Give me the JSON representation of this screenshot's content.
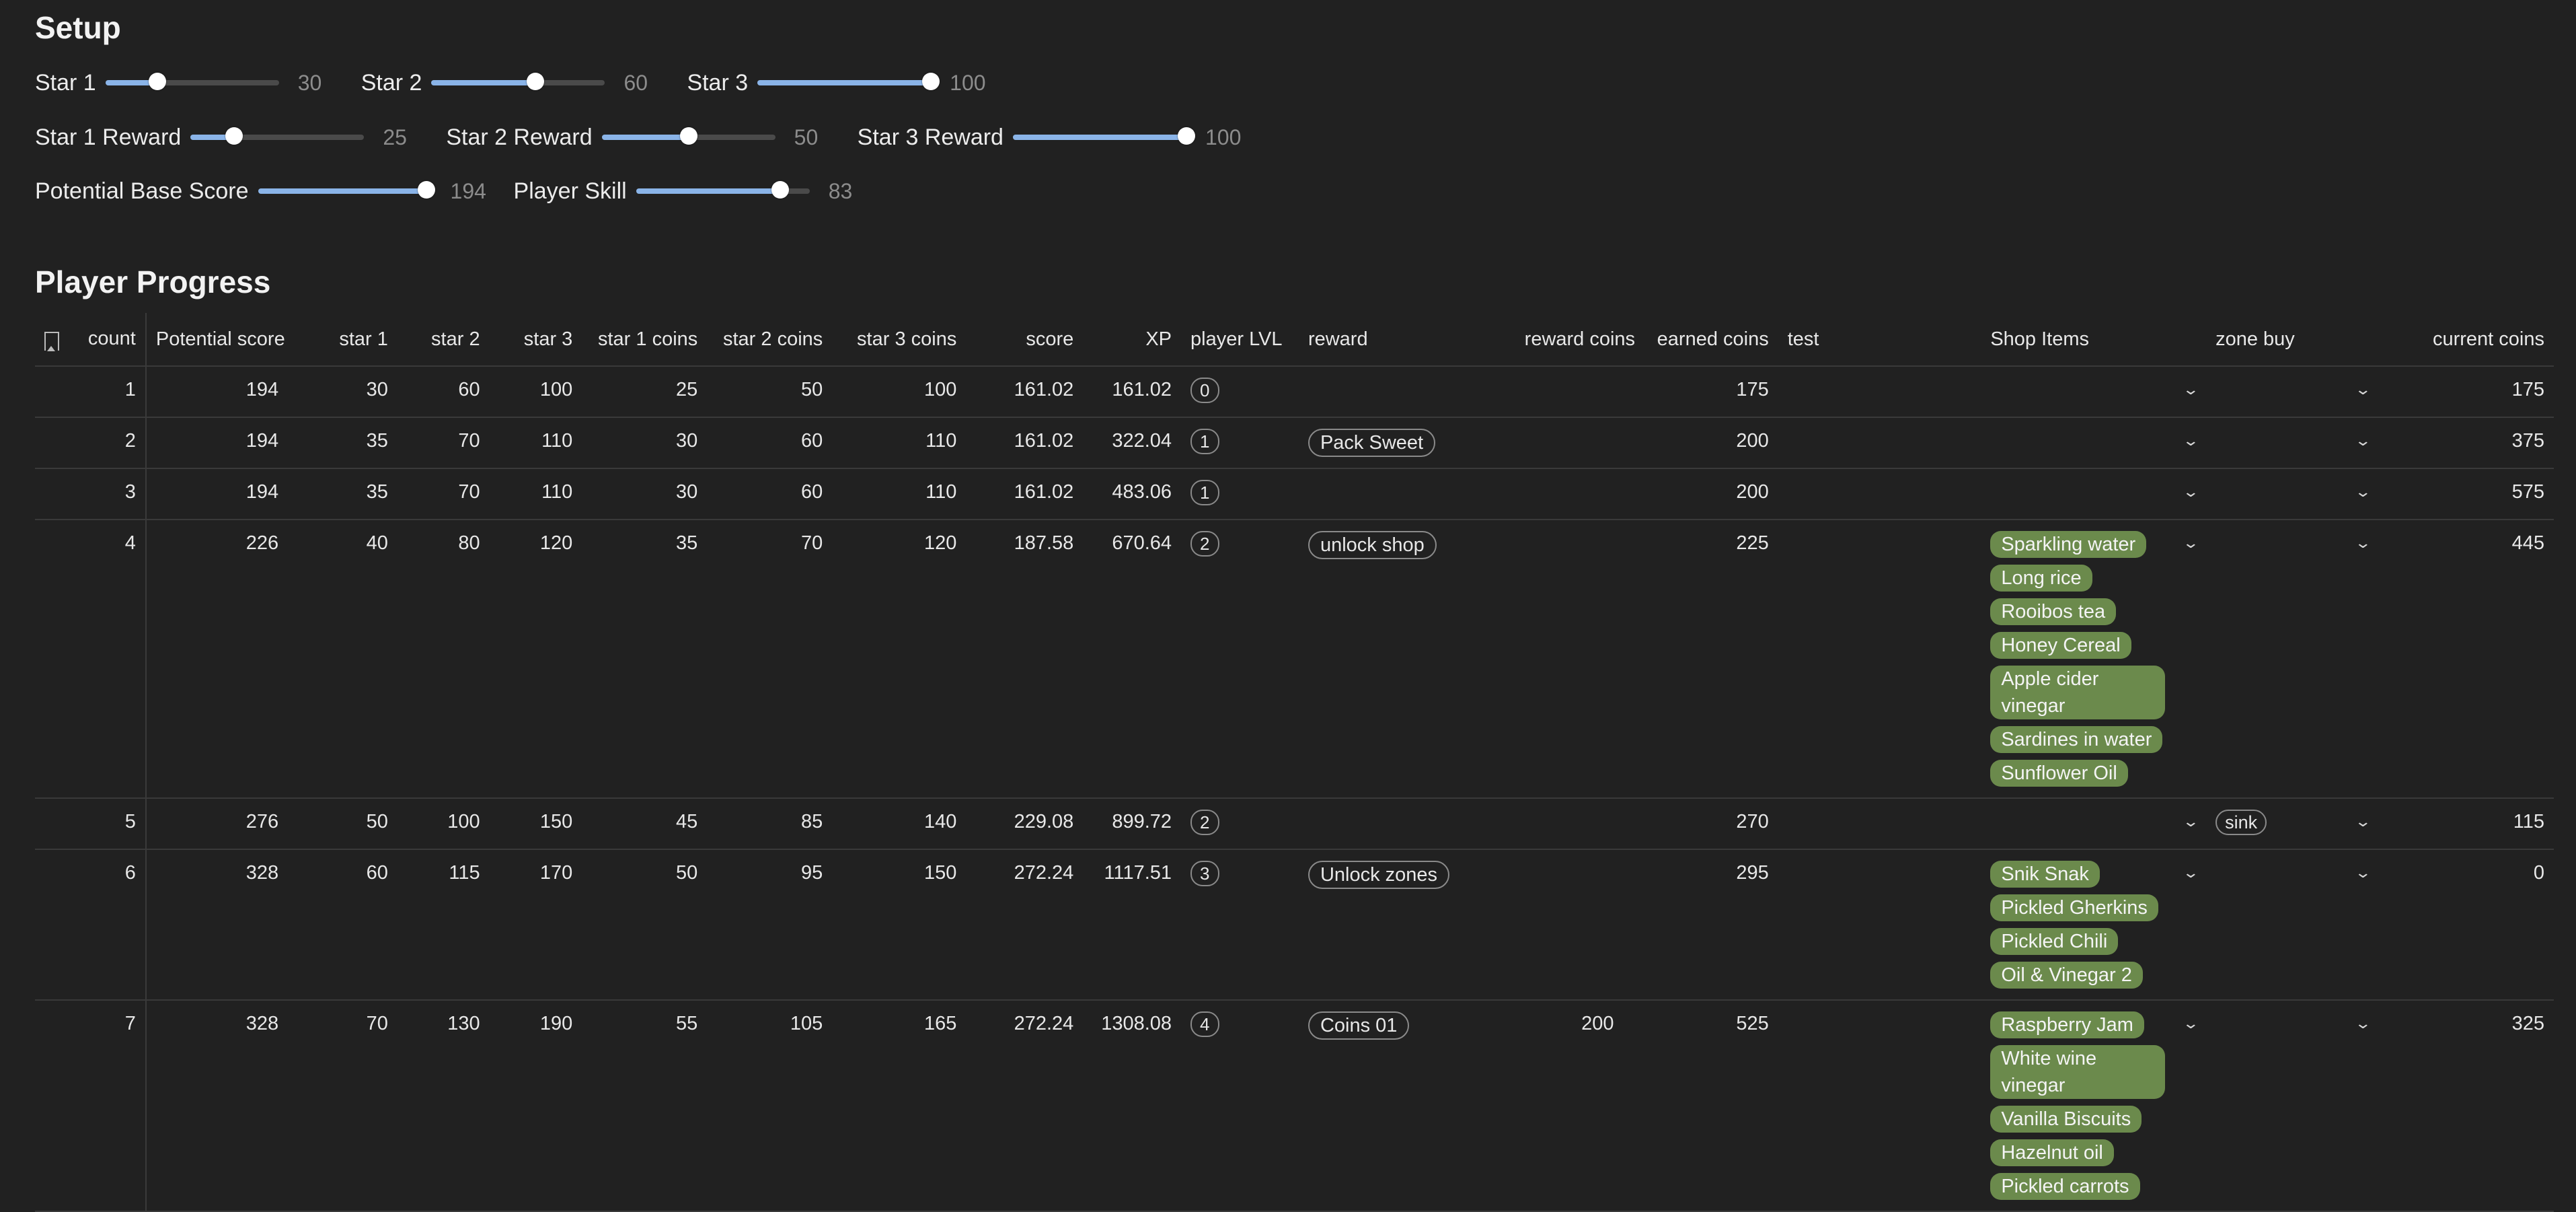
{
  "setup": {
    "title": "Setup",
    "row1": [
      {
        "label": "Star 1",
        "value": "30",
        "fraction": 0.3
      },
      {
        "label": "Star 2",
        "value": "60",
        "fraction": 0.6
      },
      {
        "label": "Star 3",
        "value": "100",
        "fraction": 1.0
      }
    ],
    "row2": [
      {
        "label": "Star 1 Reward",
        "value": "25",
        "fraction": 0.25
      },
      {
        "label": "Star 2 Reward",
        "value": "50",
        "fraction": 0.5
      },
      {
        "label": "Star 3 Reward",
        "value": "100",
        "fraction": 1.0
      }
    ],
    "row3": [
      {
        "label": "Potential Base Score",
        "value": "194",
        "fraction": 0.97
      },
      {
        "label": "Player Skill",
        "value": "83",
        "fraction": 0.83
      }
    ]
  },
  "progress": {
    "title": "Player Progress",
    "headers": {
      "count": "count",
      "potential": "Potential score",
      "star1": "star 1",
      "star2": "star 2",
      "star3": "star 3",
      "c1": "star 1 coins",
      "c2": "star 2 coins",
      "c3": "star 3 coins",
      "score": "score",
      "xp": "XP",
      "lvl": "player LVL",
      "reward": "reward",
      "reward_coins": "reward coins",
      "earned": "earned coins",
      "test": "test",
      "shop": "Shop Items",
      "zone": "zone buy",
      "current": "current coins"
    },
    "rows": [
      {
        "count": "1",
        "potential": "194",
        "star1": "30",
        "star2": "60",
        "star3": "100",
        "c1": "25",
        "c2": "50",
        "c3": "100",
        "score": "161.02",
        "xp": "161.02",
        "lvl": "0",
        "reward": "",
        "reward_coins": "",
        "earned": "175",
        "test": "",
        "shop": [],
        "zone": "",
        "current": "175"
      },
      {
        "count": "2",
        "potential": "194",
        "star1": "35",
        "star2": "70",
        "star3": "110",
        "c1": "30",
        "c2": "60",
        "c3": "110",
        "score": "161.02",
        "xp": "322.04",
        "lvl": "1",
        "reward": "Pack Sweet",
        "reward_coins": "",
        "earned": "200",
        "test": "",
        "shop": [],
        "zone": "",
        "current": "375"
      },
      {
        "count": "3",
        "potential": "194",
        "star1": "35",
        "star2": "70",
        "star3": "110",
        "c1": "30",
        "c2": "60",
        "c3": "110",
        "score": "161.02",
        "xp": "483.06",
        "lvl": "1",
        "reward": "",
        "reward_coins": "",
        "earned": "200",
        "test": "",
        "shop": [],
        "zone": "",
        "current": "575"
      },
      {
        "count": "4",
        "potential": "226",
        "star1": "40",
        "star2": "80",
        "star3": "120",
        "c1": "35",
        "c2": "70",
        "c3": "120",
        "score": "187.58",
        "xp": "670.64",
        "lvl": "2",
        "reward": "unlock shop",
        "reward_coins": "",
        "earned": "225",
        "test": "",
        "shop": [
          "Sparkling water",
          "Long rice",
          "Rooibos tea",
          "Honey Cereal",
          "Apple cider vinegar",
          "Sardines in water",
          "Sunflower Oil"
        ],
        "zone": "",
        "current": "445"
      },
      {
        "count": "5",
        "potential": "276",
        "star1": "50",
        "star2": "100",
        "star3": "150",
        "c1": "45",
        "c2": "85",
        "c3": "140",
        "score": "229.08",
        "xp": "899.72",
        "lvl": "2",
        "reward": "",
        "reward_coins": "",
        "earned": "270",
        "test": "",
        "shop": [],
        "zone": "sink",
        "current": "115"
      },
      {
        "count": "6",
        "potential": "328",
        "star1": "60",
        "star2": "115",
        "star3": "170",
        "c1": "50",
        "c2": "95",
        "c3": "150",
        "score": "272.24",
        "xp": "1117.51",
        "lvl": "3",
        "reward": "Unlock zones",
        "reward_coins": "",
        "earned": "295",
        "test": "",
        "shop": [
          "Snik Snak",
          "Pickled Gherkins",
          "Pickled Chili",
          "Oil & Vinegar 2"
        ],
        "zone": "",
        "current": "0"
      },
      {
        "count": "7",
        "potential": "328",
        "star1": "70",
        "star2": "130",
        "star3": "190",
        "c1": "55",
        "c2": "105",
        "c3": "165",
        "score": "272.24",
        "xp": "1308.08",
        "lvl": "4",
        "reward": "Coins 01",
        "reward_coins": "200",
        "earned": "525",
        "test": "",
        "shop": [
          "Raspberry Jam",
          "White wine vinegar",
          "Vanilla Biscuits",
          "Hazelnut oil",
          "Pickled carrots"
        ],
        "zone": "",
        "current": "325"
      }
    ]
  },
  "colors": {
    "background": "#212121",
    "slider_fill": "#8ab4e8",
    "shop_item": "#6b8a4c"
  },
  "icons": {
    "bookmark": "bookmark-icon",
    "dropdown": "chevron-down-icon"
  }
}
